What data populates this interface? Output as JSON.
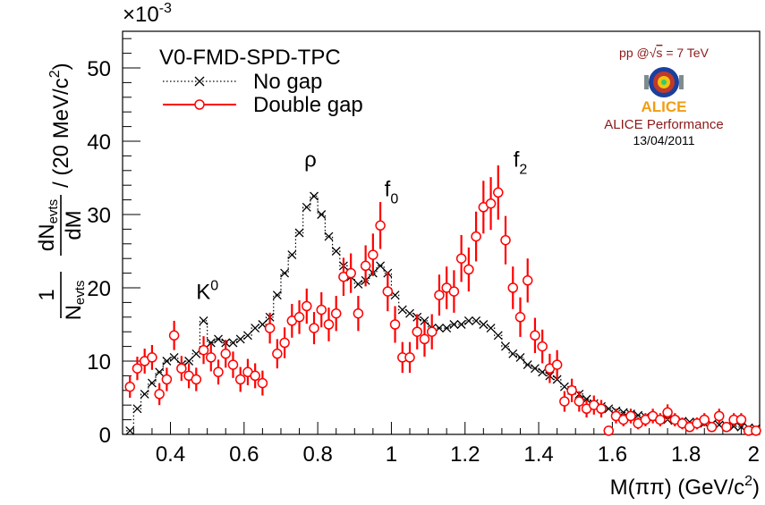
{
  "chart_data": {
    "type": "scatter",
    "exponent_label": "×10",
    "exponent_power": "-3",
    "xlim": [
      0.27,
      2.0
    ],
    "ylim": [
      0,
      55
    ],
    "x_ticks": [
      0.4,
      0.6,
      0.8,
      1,
      1.2,
      1.4,
      1.6,
      1.8,
      2
    ],
    "x_tick_labels": [
      "0.4",
      "0.6",
      "0.8",
      "1",
      "1.2",
      "1.4",
      "1.6",
      "1.8",
      "2"
    ],
    "y_ticks": [
      0,
      10,
      20,
      30,
      40,
      50
    ],
    "y_tick_labels": [
      "0",
      "10",
      "20",
      "30",
      "40",
      "50"
    ],
    "xlabel": {
      "base": "M(ππ) (GeV/c",
      "sup": "2",
      "tail": ")"
    },
    "ylabel": {
      "frac_num": "1",
      "frac_den": "N",
      "frac_den_sub": "evts",
      "d_num": "dN",
      "d_num_sub": "evts",
      "d_den": "dM",
      "tail": "/ (20 MeV/c",
      "sup": "2",
      "tail2": ")"
    },
    "legend": {
      "title": "V0-FMD-SPD-TPC",
      "entries": [
        {
          "label": "No gap",
          "color": "#000000",
          "style": "dotted-x"
        },
        {
          "label": "Double gap",
          "color": "#ff0000",
          "style": "open-circle"
        }
      ]
    },
    "annotations": [
      {
        "text": "K",
        "sup": "0",
        "x": 0.5,
        "y": 18.5
      },
      {
        "text": "ρ",
        "x": 0.78,
        "y": 36.5
      },
      {
        "text": "f",
        "sub": "0",
        "x": 1.0,
        "y": 32.5
      },
      {
        "text": "f",
        "sub": "2",
        "x": 1.35,
        "y": 36.5
      }
    ],
    "series": [
      {
        "name": "No gap",
        "color": "#000000",
        "marker": "x",
        "x": [
          0.29,
          0.31,
          0.33,
          0.35,
          0.37,
          0.39,
          0.41,
          0.43,
          0.45,
          0.47,
          0.49,
          0.51,
          0.53,
          0.55,
          0.57,
          0.59,
          0.61,
          0.63,
          0.65,
          0.67,
          0.69,
          0.71,
          0.73,
          0.75,
          0.77,
          0.79,
          0.81,
          0.83,
          0.85,
          0.87,
          0.89,
          0.91,
          0.93,
          0.95,
          0.97,
          0.99,
          1.01,
          1.03,
          1.05,
          1.07,
          1.09,
          1.11,
          1.13,
          1.15,
          1.17,
          1.19,
          1.21,
          1.23,
          1.25,
          1.27,
          1.29,
          1.31,
          1.33,
          1.35,
          1.37,
          1.39,
          1.41,
          1.43,
          1.45,
          1.47,
          1.49,
          1.51,
          1.53,
          1.55,
          1.57,
          1.59,
          1.61,
          1.63,
          1.65,
          1.67,
          1.69,
          1.71,
          1.73,
          1.75,
          1.77,
          1.79,
          1.81,
          1.83,
          1.85,
          1.87,
          1.89,
          1.91,
          1.93,
          1.95,
          1.97,
          1.99
        ],
        "y": [
          0.5,
          3.5,
          5.5,
          7,
          8.5,
          10,
          10.5,
          9.5,
          10,
          11,
          15.5,
          12.5,
          13,
          12.5,
          12.5,
          13,
          13.5,
          14.5,
          15,
          16,
          19,
          22,
          24.5,
          27.5,
          31,
          32.5,
          30,
          27,
          25,
          23,
          21.5,
          20.5,
          21,
          22,
          23,
          22,
          19,
          17,
          16.5,
          16,
          15.5,
          14.5,
          14.5,
          14.5,
          15,
          15,
          15.5,
          15.5,
          15,
          14.5,
          13.5,
          12,
          11,
          10.5,
          9.5,
          9,
          8.5,
          8,
          7.5,
          6.5,
          6,
          5.5,
          4.8,
          4.2,
          3.8,
          3.5,
          3.2,
          3,
          2.8,
          2.6,
          2.4,
          2.2,
          2.1,
          2,
          1.9,
          1.8,
          1.7,
          1.6,
          1.5,
          1.4,
          1.3,
          1.2,
          1.1,
          1,
          0.9,
          0.8
        ]
      },
      {
        "name": "Double gap",
        "color": "#ff0000",
        "marker": "open-circle",
        "x": [
          0.29,
          0.31,
          0.33,
          0.35,
          0.37,
          0.39,
          0.41,
          0.43,
          0.45,
          0.47,
          0.49,
          0.51,
          0.53,
          0.55,
          0.57,
          0.59,
          0.61,
          0.63,
          0.65,
          0.67,
          0.69,
          0.71,
          0.73,
          0.75,
          0.77,
          0.79,
          0.81,
          0.83,
          0.85,
          0.87,
          0.89,
          0.91,
          0.93,
          0.95,
          0.97,
          0.99,
          1.01,
          1.03,
          1.05,
          1.07,
          1.09,
          1.11,
          1.13,
          1.15,
          1.17,
          1.19,
          1.21,
          1.23,
          1.25,
          1.27,
          1.29,
          1.31,
          1.33,
          1.35,
          1.37,
          1.39,
          1.41,
          1.43,
          1.45,
          1.47,
          1.49,
          1.51,
          1.53,
          1.55,
          1.57,
          1.59,
          1.61,
          1.63,
          1.65,
          1.67,
          1.69,
          1.71,
          1.73,
          1.75,
          1.77,
          1.79,
          1.81,
          1.83,
          1.85,
          1.87,
          1.89,
          1.91,
          1.93,
          1.95,
          1.97,
          1.99
        ],
        "y": [
          6.5,
          9,
          10,
          10.5,
          5.5,
          7.5,
          13.5,
          9,
          8,
          7.5,
          11.5,
          10.5,
          8.5,
          11,
          9.5,
          7.5,
          8.5,
          8,
          7,
          14.5,
          11,
          12.5,
          15.5,
          16,
          17.5,
          14.5,
          17,
          15,
          16.5,
          21.5,
          22,
          16.5,
          23,
          24.5,
          28.5,
          19.5,
          15,
          10.5,
          10.5,
          14,
          13,
          14,
          19,
          20,
          19.5,
          24,
          22.5,
          27,
          31,
          31.5,
          33,
          26.5,
          20,
          16,
          21,
          13.5,
          12,
          9,
          9.5,
          4.5,
          6,
          4.5,
          3.5,
          4,
          3.5,
          0.5,
          2.5,
          2,
          2.5,
          1.5,
          2,
          2.5,
          2,
          3,
          2,
          1.5,
          1,
          1.5,
          2,
          1,
          2.5,
          1,
          2,
          2,
          0.5,
          0.5
        ],
        "err": [
          1.5,
          1.6,
          1.7,
          1.7,
          1.5,
          1.6,
          2,
          1.7,
          1.7,
          1.6,
          1.9,
          1.9,
          1.7,
          1.9,
          1.8,
          1.7,
          1.8,
          1.7,
          1.7,
          2.1,
          2,
          2.1,
          2.3,
          2.3,
          2.4,
          2.2,
          2.4,
          2.3,
          2.4,
          2.6,
          2.7,
          2.4,
          2.8,
          2.9,
          3.2,
          2.7,
          2.5,
          2.1,
          2.1,
          2.4,
          2.4,
          2.4,
          2.8,
          2.9,
          2.9,
          3.2,
          3,
          3.4,
          3.6,
          3.6,
          3.7,
          3.3,
          2.9,
          2.7,
          3,
          2.4,
          2.3,
          2,
          2,
          1.4,
          1.6,
          1.4,
          1.2,
          1.3,
          1.2,
          0.6,
          1,
          0.9,
          1,
          0.8,
          0.9,
          1,
          0.9,
          1.1,
          0.9,
          0.8,
          0.7,
          0.8,
          0.9,
          0.7,
          1,
          0.7,
          0.9,
          0.9,
          0.5,
          0.5
        ]
      }
    ]
  },
  "logo": {
    "energy_prefix": "pp @",
    "energy_root": "s",
    "energy_suffix": "= 7 TeV",
    "name": "ALICE",
    "performance": "ALICE Performance",
    "date": "13/04/2011"
  }
}
